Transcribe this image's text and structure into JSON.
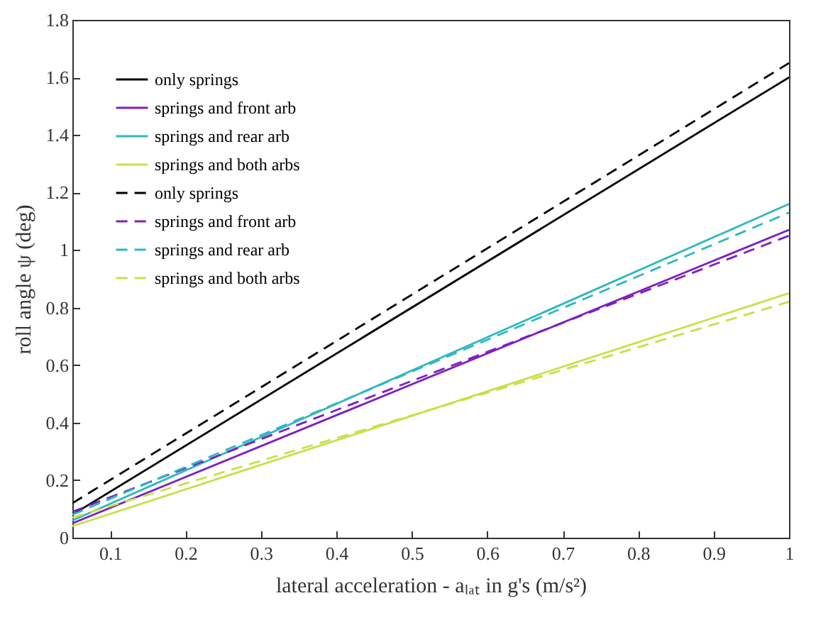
{
  "chart_data": {
    "type": "line",
    "xlabel": "lateral acceleration - aₗₐₜ in g's (m/s²)",
    "ylabel": "roll angle ψ (deg)",
    "x": [
      0.05,
      1
    ],
    "xlim": [
      0.05,
      1
    ],
    "xticks": [
      0.1,
      0.2,
      0.3,
      0.4,
      0.5,
      0.6,
      0.7,
      0.8,
      0.9,
      1
    ],
    "ylim": [
      0,
      1.8
    ],
    "yticks": [
      0,
      0.2,
      0.4,
      0.6,
      0.8,
      1,
      1.2,
      1.4,
      1.6,
      1.8
    ],
    "grid": false,
    "legend": "top left",
    "marker": "none",
    "series": [
      {
        "name": "only springs",
        "color": "#000000",
        "line_style": "solid",
        "values": [
          0.08,
          1.6
        ]
      },
      {
        "name": "springs and front arb",
        "color": "#7e1fc0",
        "line_style": "solid",
        "values": [
          0.05,
          1.07
        ]
      },
      {
        "name": "springs and rear arb",
        "color": "#2eb8c0",
        "line_style": "solid",
        "values": [
          0.06,
          1.16
        ]
      },
      {
        "name": "springs and both arbs",
        "color": "#c8e048",
        "line_style": "solid",
        "values": [
          0.04,
          0.85
        ]
      },
      {
        "name": "only springs",
        "color": "#000000",
        "line_style": "dashed",
        "values": [
          0.12,
          1.65
        ]
      },
      {
        "name": "springs and front arb",
        "color": "#7e1fc0",
        "line_style": "dashed",
        "values": [
          0.09,
          1.05
        ]
      },
      {
        "name": "springs and rear arb",
        "color": "#2eb8c0",
        "line_style": "dashed",
        "values": [
          0.08,
          1.13
        ]
      },
      {
        "name": "springs and both arbs",
        "color": "#c8e048",
        "line_style": "dashed",
        "values": [
          0.07,
          0.82
        ]
      }
    ]
  }
}
